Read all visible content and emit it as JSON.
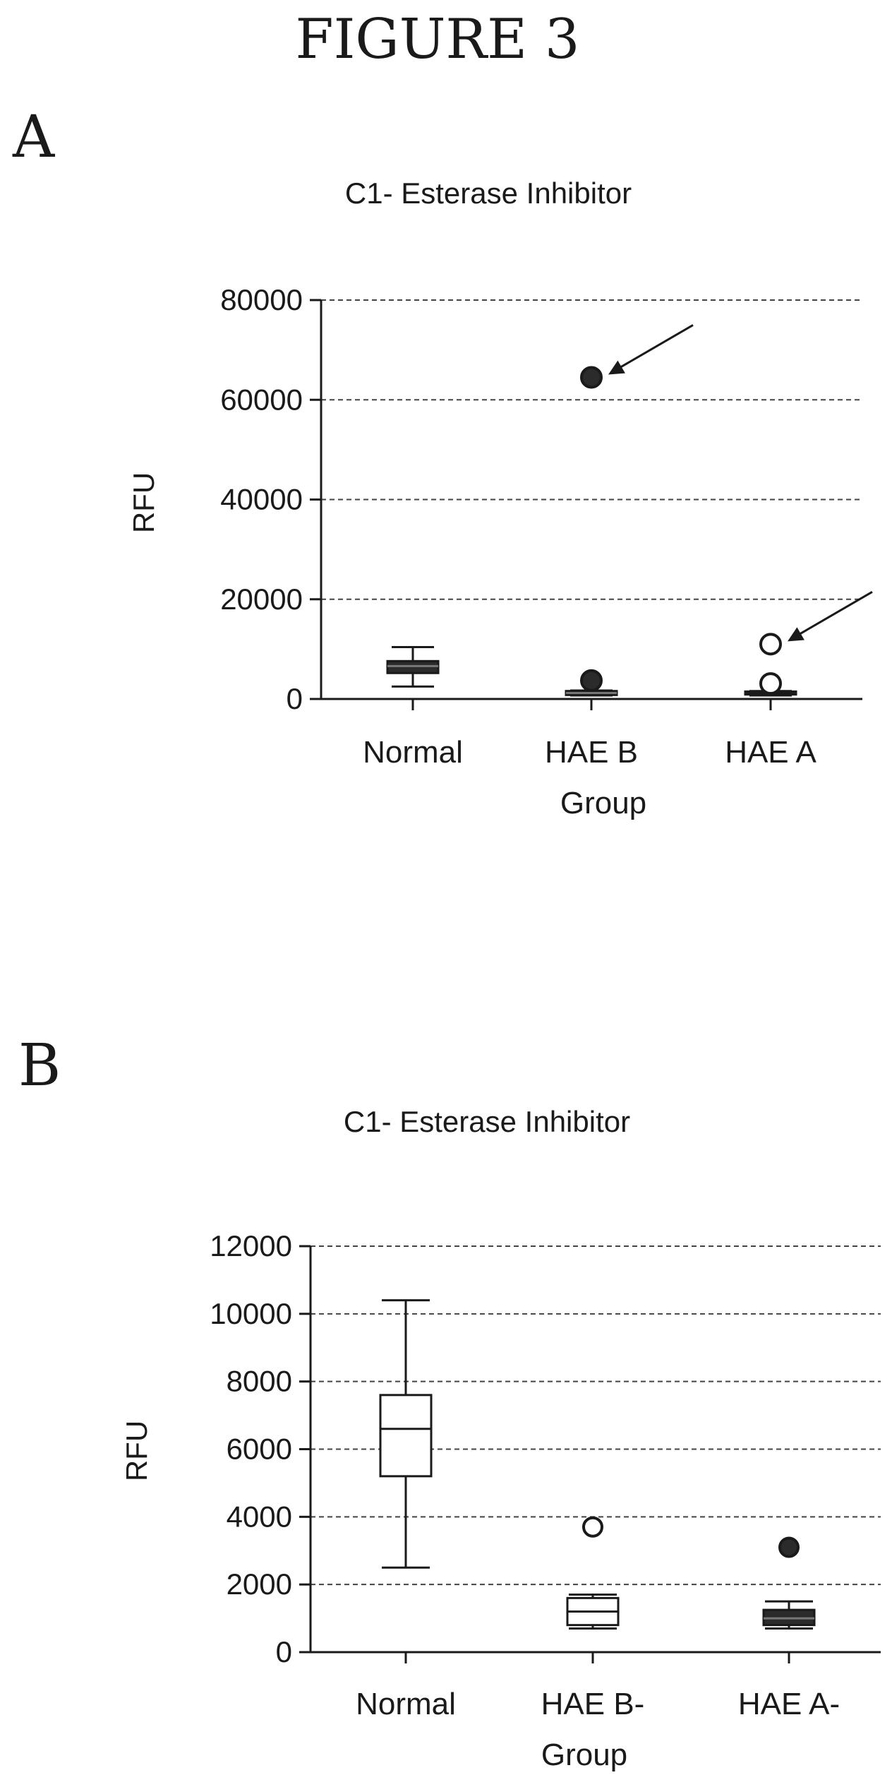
{
  "figure_title": "FIGURE 3",
  "colors": {
    "ink": "#1a1a1a",
    "fill_dark": "#2b2b2b",
    "grid": "#444444"
  },
  "chart_data": [
    {
      "panel": "A",
      "type": "box",
      "title": "C1- Esterase Inhibitor",
      "xlabel": "Group",
      "ylabel": "RFU",
      "ylim": [
        0,
        80000
      ],
      "yticks": [
        0,
        20000,
        40000,
        60000,
        80000
      ],
      "ytick_labels": [
        "0",
        "20000",
        "40000",
        "60000",
        "80000"
      ],
      "grid": "horizontal-dashed",
      "categories": [
        "Normal",
        "HAE B",
        "HAE A"
      ],
      "boxes": [
        {
          "category": "Normal",
          "whisker_low": 2500,
          "q1": 5200,
          "median": 6600,
          "q3": 7600,
          "whisker_high": 10400,
          "fill": "dark"
        },
        {
          "category": "HAE B",
          "whisker_low": 700,
          "q1": 800,
          "median": 1200,
          "q3": 1600,
          "whisker_high": 1700,
          "fill": "dark"
        },
        {
          "category": "HAE A",
          "whisker_low": 700,
          "q1": 900,
          "median": 1200,
          "q3": 1500,
          "whisker_high": 1600,
          "fill": "white"
        }
      ],
      "outliers": [
        {
          "category": "HAE B",
          "value": 64500,
          "marker": "filled"
        },
        {
          "category": "HAE B",
          "value": 3700,
          "marker": "filled"
        },
        {
          "category": "HAE A",
          "value": 11000,
          "marker": "open"
        },
        {
          "category": "HAE A",
          "value": 3100,
          "marker": "open"
        }
      ],
      "annotations": [
        {
          "type": "arrow",
          "points_to": {
            "category": "HAE B",
            "value": 64500
          }
        },
        {
          "type": "arrow",
          "points_to": {
            "category": "HAE A",
            "value": 11000
          }
        }
      ]
    },
    {
      "panel": "B",
      "type": "box",
      "title": "C1- Esterase Inhibitor",
      "xlabel": "Group",
      "ylabel": "RFU",
      "ylim": [
        0,
        12000
      ],
      "yticks": [
        0,
        2000,
        4000,
        6000,
        8000,
        10000,
        12000
      ],
      "ytick_labels": [
        "0",
        "2000",
        "4000",
        "6000",
        "8000",
        "10000",
        "12000"
      ],
      "grid": "horizontal-dashed",
      "categories": [
        "Normal",
        "HAE B-",
        "HAE A-"
      ],
      "boxes": [
        {
          "category": "Normal",
          "whisker_low": 2500,
          "q1": 5200,
          "median": 6600,
          "q3": 7600,
          "whisker_high": 10400,
          "fill": "white"
        },
        {
          "category": "HAE B-",
          "whisker_low": 700,
          "q1": 800,
          "median": 1200,
          "q3": 1600,
          "whisker_high": 1700,
          "fill": "white"
        },
        {
          "category": "HAE A-",
          "whisker_low": 700,
          "q1": 800,
          "median": 1000,
          "q3": 1250,
          "whisker_high": 1500,
          "fill": "dark"
        }
      ],
      "outliers": [
        {
          "category": "HAE B-",
          "value": 3700,
          "marker": "open"
        },
        {
          "category": "HAE A-",
          "value": 3100,
          "marker": "filled"
        }
      ]
    }
  ]
}
